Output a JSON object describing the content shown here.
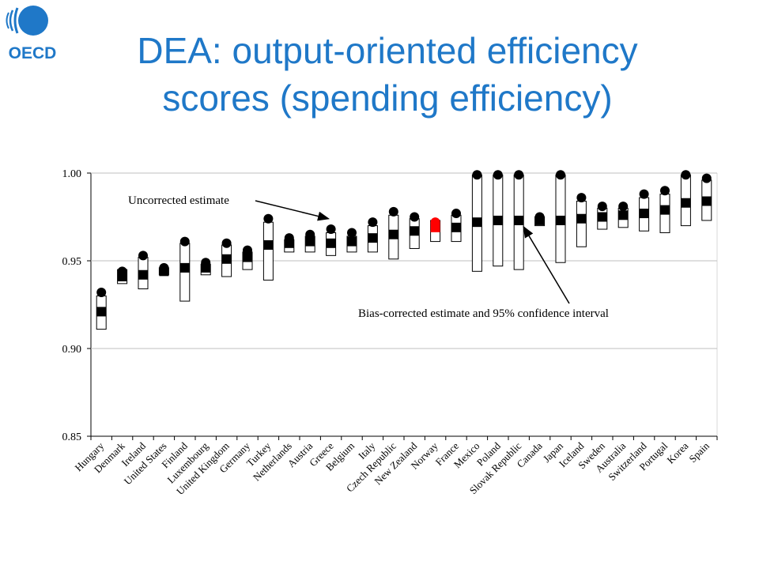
{
  "logo": {
    "text": "OECD",
    "color": "#1f78c8"
  },
  "title": {
    "line1": "DEA: output-oriented efficiency",
    "line2": "scores (spending efficiency)",
    "color": "#1f78c8"
  },
  "chart_data": {
    "type": "range-marker",
    "categories": [
      "Hungary",
      "Denmark",
      "Ireland",
      "United States",
      "Finland",
      "Luxembourg",
      "United Kingdom",
      "Germany",
      "Turkey",
      "Netherlands",
      "Austria",
      "Greece",
      "Belgium",
      "Italy",
      "Czech Republic",
      "New Zealand",
      "Norway",
      "France",
      "Mexico",
      "Poland",
      "Slovak Republic",
      "Canada",
      "Japan",
      "Iceland",
      "Sweden",
      "Australia",
      "Switzerland",
      "Portugal",
      "Korea",
      "Spain"
    ],
    "series": [
      {
        "name": "Uncorrected estimate",
        "marker": "circle",
        "values": [
          0.932,
          0.944,
          0.953,
          0.946,
          0.961,
          0.949,
          0.96,
          0.956,
          0.974,
          0.963,
          0.965,
          0.968,
          0.966,
          0.972,
          0.978,
          0.975,
          0.972,
          0.977,
          0.999,
          0.999,
          0.999,
          0.975,
          0.999,
          0.986,
          0.981,
          0.981,
          0.988,
          0.99,
          0.999,
          0.997
        ]
      },
      {
        "name": "Bias-corrected estimate and 95% confidence interval",
        "marker": "square",
        "values": [
          0.921,
          0.941,
          0.942,
          0.944,
          0.946,
          0.946,
          0.951,
          0.952,
          0.959,
          0.96,
          0.961,
          0.96,
          0.961,
          0.963,
          0.965,
          0.967,
          0.969,
          0.969,
          0.972,
          0.973,
          0.973,
          0.973,
          0.973,
          0.974,
          0.975,
          0.976,
          0.977,
          0.979,
          0.983,
          0.984
        ],
        "ci_low": [
          0.911,
          0.937,
          0.934,
          0.942,
          0.927,
          0.942,
          0.941,
          0.945,
          0.939,
          0.955,
          0.955,
          0.953,
          0.955,
          0.955,
          0.951,
          0.957,
          0.961,
          0.961,
          0.944,
          0.947,
          0.945,
          0.97,
          0.949,
          0.958,
          0.968,
          0.969,
          0.967,
          0.966,
          0.97,
          0.973
        ],
        "ci_high": [
          0.93,
          0.945,
          0.952,
          0.946,
          0.96,
          0.948,
          0.959,
          0.955,
          0.972,
          0.962,
          0.964,
          0.966,
          0.964,
          0.97,
          0.976,
          0.974,
          0.973,
          0.976,
          0.999,
          0.999,
          0.999,
          0.975,
          0.999,
          0.984,
          0.98,
          0.98,
          0.986,
          0.988,
          0.999,
          0.996
        ]
      }
    ],
    "highlight": {
      "category": "Norway",
      "color": "#ff0000"
    },
    "ylim": [
      0.85,
      1.0
    ],
    "yticks": [
      0.85,
      0.9,
      0.95,
      1.0
    ],
    "ytick_labels": [
      "0.85",
      "0.90",
      "0.95",
      "1.00"
    ],
    "grid": true,
    "annotations": [
      {
        "text": "Uncorrected estimate",
        "points_to": "Greece"
      },
      {
        "text": "Bias-corrected estimate and 95% confidence interval",
        "points_to": "Slovak Republic"
      }
    ]
  }
}
